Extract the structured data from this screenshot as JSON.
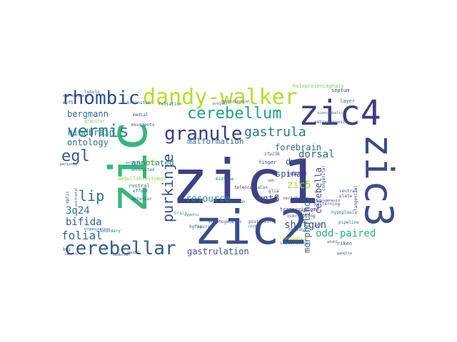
{
  "cloud": {
    "words": [
      {
        "text": "zic1",
        "color": "#3f3f86"
      },
      {
        "text": "zic",
        "color": "#35b779"
      },
      {
        "text": "zic2",
        "color": "#3b4d8b"
      },
      {
        "text": "zic4",
        "color": "#3f3d84"
      },
      {
        "text": "zic3",
        "color": "#3e4a89"
      },
      {
        "text": "dandy-walker",
        "color": "#b5de2b"
      },
      {
        "text": "rhombic",
        "color": "#2c4f8c"
      },
      {
        "text": "cerebellum",
        "color": "#1fa187"
      },
      {
        "text": "granule",
        "color": "#3a3a82"
      },
      {
        "text": "gastrula",
        "color": "#2a788e"
      },
      {
        "text": "vermis",
        "color": "#26828e"
      },
      {
        "text": "cerebellar",
        "color": "#2f5e8d"
      },
      {
        "text": "purkinje",
        "color": "#3b528b"
      },
      {
        "text": "egl",
        "color": "#39568c"
      },
      {
        "text": "lip",
        "color": "#2d708e"
      },
      {
        "text": "dwm",
        "color": "#3b528b"
      },
      {
        "text": "bergmann",
        "color": "#2f6b8e"
      },
      {
        "text": "hindbrain",
        "color": "#2a768e"
      },
      {
        "text": "ontology",
        "color": "#2c718e"
      },
      {
        "text": "annotated",
        "color": "#2a788e"
      },
      {
        "text": "malformation",
        "color": "#2f6b8e"
      },
      {
        "text": "forebrain",
        "color": "#306a8e"
      },
      {
        "text": "dorsal",
        "color": "#31688e"
      },
      {
        "text": "zic5",
        "color": "#a5db36"
      },
      {
        "text": "spina",
        "color": "#33638d"
      },
      {
        "text": "resource",
        "color": "#21908d"
      },
      {
        "text": "wnt8",
        "color": "#3b528b"
      },
      {
        "text": "3q24",
        "color": "#2a788e"
      },
      {
        "text": "bifida",
        "color": "#34618d"
      },
      {
        "text": "folial",
        "color": "#31688e"
      },
      {
        "text": "shotgun",
        "color": "#3b528b"
      },
      {
        "text": "morpholino",
        "color": "#33638d"
      },
      {
        "text": "cerebella",
        "color": "#3f4788"
      },
      {
        "text": "gastrulation",
        "color": "#3b528b"
      },
      {
        "text": "odd-paired",
        "color": "#2ab07f"
      },
      {
        "text": "medulloblastomas",
        "color": "#90d743"
      },
      {
        "text": "neurectoderm",
        "color": "#3e4a89"
      },
      {
        "text": "holoprosencephaly",
        "color": "#7ad151"
      },
      {
        "text": "diencephalic",
        "color": "#2f6c8e"
      },
      {
        "text": "embryogenesis",
        "color": "#2f6c8e"
      },
      {
        "text": "annotated",
        "color": "#2a788e"
      },
      {
        "text": "rostral",
        "color": "#31688e"
      },
      {
        "text": "patterning",
        "color": "#3a548c"
      },
      {
        "text": "transcriptome",
        "color": "#482374"
      },
      {
        "text": "vertebrate",
        "color": "#39568c"
      },
      {
        "text": "telencephalon",
        "color": "#3e4a89"
      },
      {
        "text": "precursors",
        "color": "#38598c"
      },
      {
        "text": "overlapping",
        "color": "#3f4788"
      },
      {
        "text": "hypoplasia",
        "color": "#2f6c8e"
      },
      {
        "text": "neurulation",
        "color": "#d2e21b"
      },
      {
        "text": "subdivisions",
        "color": "#2c728e"
      },
      {
        "text": "morphogenetic",
        "color": "#38588c"
      },
      {
        "text": "boundary",
        "color": "#2c718e"
      },
      {
        "text": "lobule",
        "color": "#39568c"
      },
      {
        "text": "septum",
        "color": "#3e4989"
      },
      {
        "text": "layer",
        "color": "#306a8e"
      },
      {
        "text": "ventral",
        "color": "#38598c"
      },
      {
        "text": "pipeline",
        "color": "#2a768e"
      },
      {
        "text": "riken",
        "color": "#3b528b"
      },
      {
        "text": "neuron",
        "color": "#2f6b8e"
      },
      {
        "text": "joubert",
        "color": "#482878"
      },
      {
        "text": "finger",
        "color": "#3e4a89"
      },
      {
        "text": "midline",
        "color": "#2d708e"
      },
      {
        "text": "brainstem",
        "color": "#2c728e"
      },
      {
        "text": "foliation",
        "color": "#33638d"
      },
      {
        "text": "medial",
        "color": "#39558c"
      },
      {
        "text": "movements",
        "color": "#3b528b"
      },
      {
        "text": "ciliary",
        "color": "#a0da39"
      },
      {
        "text": "crest",
        "color": "#9fda3a"
      },
      {
        "text": "zfp238",
        "color": "#39568c"
      },
      {
        "text": "posterior",
        "color": "#3b518b"
      },
      {
        "text": "neural",
        "color": "#31688e"
      },
      {
        "text": "nervous",
        "color": "#306a8e"
      },
      {
        "text": "tangential",
        "color": "#3b528b"
      },
      {
        "text": "congenital",
        "color": "#3f4788"
      },
      {
        "text": "cyst",
        "color": "#2f6b8e"
      },
      {
        "text": "hgfap",
        "color": "#3b528b"
      },
      {
        "text": "effort",
        "color": "#33638d"
      },
      {
        "text": "anterior",
        "color": "#39568c"
      },
      {
        "text": "external",
        "color": "#3b528b"
      },
      {
        "text": "periotic",
        "color": "#3f4788"
      },
      {
        "text": "optic",
        "color": "#3f4788"
      },
      {
        "text": "postnatal",
        "color": "#3b528b"
      },
      {
        "text": "organization",
        "color": "#3b528b"
      },
      {
        "text": "brain",
        "color": "#35b779"
      },
      {
        "text": "myf5",
        "color": "#3b528b"
      },
      {
        "text": "granular",
        "color": "#6ece58"
      },
      {
        "text": "project",
        "color": "#3f4788"
      },
      {
        "text": "hybridization",
        "color": "#3b528b"
      },
      {
        "text": "glia",
        "color": "#3f4788"
      },
      {
        "text": "midbrain",
        "color": "#39568c"
      },
      {
        "text": "caudal",
        "color": "#3b528b"
      },
      {
        "text": "identity",
        "color": "#3f4788"
      },
      {
        "text": "bmp",
        "color": "#3b528b"
      },
      {
        "text": "dysgenesis",
        "color": "#3f4788"
      },
      {
        "text": "ganglia",
        "color": "#3b528b"
      },
      {
        "text": "zygotic",
        "color": "#2c718e"
      },
      {
        "text": "mouse",
        "color": "#3b528b"
      },
      {
        "text": "plate",
        "color": "#3b528b"
      },
      {
        "text": "ant",
        "color": "#39568c"
      },
      {
        "text": "atoh1",
        "color": "#3b528b"
      },
      {
        "text": "shh",
        "color": "#3f4788"
      }
    ]
  }
}
